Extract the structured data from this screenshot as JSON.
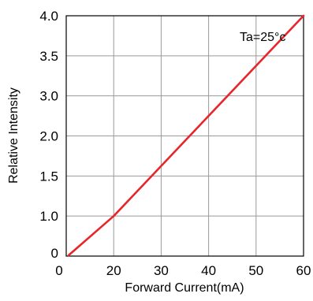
{
  "chart_data": {
    "type": "line",
    "xlabel": "Forward Current(mA)",
    "ylabel": "Relative Intensity",
    "x_ticks": [
      "0",
      "20",
      "30",
      "40",
      "50",
      "60"
    ],
    "y_ticks": [
      "0",
      "1.0",
      "1.5",
      "2.0",
      "3.0",
      "3.5",
      "4.0"
    ],
    "grid": true,
    "annotation": "Ta=25°c",
    "series": [
      {
        "color": "#e8262a",
        "points": [
          {
            "x": 1,
            "y": 0.02
          },
          {
            "x": 20,
            "y": 1.0
          },
          {
            "x": 60,
            "y": 4.0
          }
        ]
      }
    ]
  }
}
